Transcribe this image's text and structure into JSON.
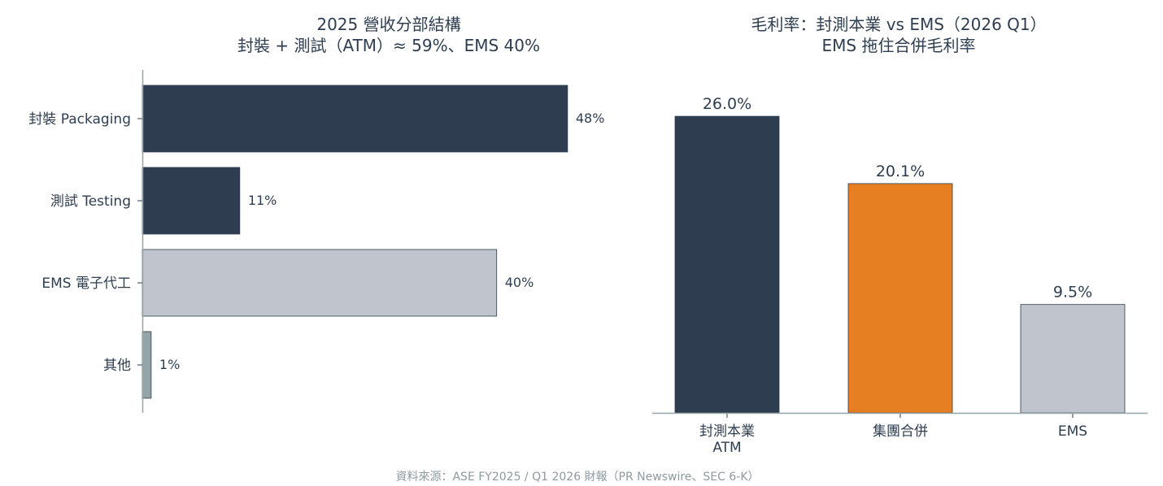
{
  "chart_data": [
    {
      "type": "bar",
      "orientation": "horizontal",
      "title_lines": [
        "2025 營收分部結構",
        "封裝 + 測試（ATM）≈ 59%、EMS 40%"
      ],
      "categories": [
        "封裝 Packaging",
        "測試 Testing",
        "EMS 電子代工",
        "其他"
      ],
      "values": [
        48,
        11,
        40,
        1
      ],
      "value_labels": [
        "48%",
        "11%",
        "40%",
        "1%"
      ],
      "colors": [
        "#2e3e50",
        "#2e3e50",
        "#c0c4cc",
        "#95a5a6"
      ],
      "xlim": [
        0,
        56
      ]
    },
    {
      "type": "bar",
      "title_lines": [
        "毛利率：封測本業 vs EMS（2026 Q1）",
        "EMS 拖住合併毛利率"
      ],
      "categories": [
        [
          "封測本業",
          "ATM"
        ],
        [
          "集團合併"
        ],
        [
          "EMS"
        ]
      ],
      "values": [
        26.0,
        20.1,
        9.5
      ],
      "value_labels": [
        "26.0%",
        "20.1%",
        "9.5%"
      ],
      "colors": [
        "#2e3e50",
        "#e67e22",
        "#c0c4cc"
      ],
      "ylim": [
        0,
        28.5
      ]
    }
  ],
  "source": "資料來源：ASE FY2025 / Q1 2026 財報（PR Newswire、SEC 6-K）"
}
